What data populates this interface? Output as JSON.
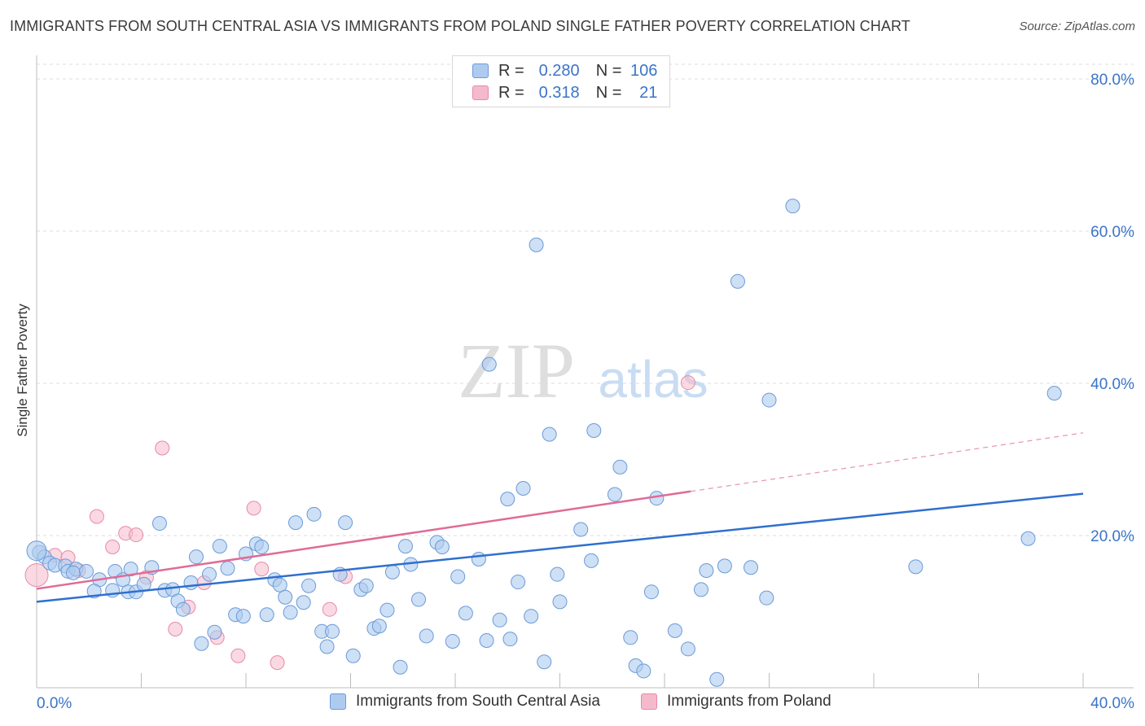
{
  "title": "IMMIGRANTS FROM SOUTH CENTRAL ASIA VS IMMIGRANTS FROM POLAND SINGLE FATHER POVERTY CORRELATION CHART",
  "source": "Source: ZipAtlas.com",
  "watermark": {
    "zip": "ZIP",
    "atlas": "atlas"
  },
  "legend": {
    "r_label": "R =",
    "n_label": "N =",
    "rows": [
      {
        "r": "0.280",
        "n": "106"
      },
      {
        "r": "0.318",
        "n": "21"
      }
    ]
  },
  "colors": {
    "blue_fill": "#aecbef",
    "blue_stroke": "#6a9ad9",
    "blue_line": "#2f6fcf",
    "pink_fill": "#f5b9cc",
    "pink_stroke": "#e68aa8",
    "pink_line": "#e06b96",
    "tick_text": "#3b74c9"
  },
  "chart_data": {
    "type": "scatter",
    "xlabel": "",
    "ylabel": "Single Father Poverty",
    "xlim": [
      0,
      40
    ],
    "ylim": [
      0,
      80
    ],
    "x_tick_labels": [
      "0.0%",
      "40.0%"
    ],
    "y_ticks": [
      20,
      40,
      60,
      80
    ],
    "y_tick_labels": [
      "20.0%",
      "40.0%",
      "60.0%",
      "80.0%"
    ],
    "grid": "horizontal dashed",
    "legend_position": "top-center",
    "series": [
      {
        "name": "Immigrants from South Central Asia",
        "color": "blue",
        "R": 0.28,
        "N": 106,
        "trend": {
          "x": [
            0,
            40
          ],
          "y": [
            11.3,
            25.5
          ]
        },
        "points": [
          [
            0.1,
            17.8
          ],
          [
            0.3,
            17.2
          ],
          [
            0.5,
            16.4
          ],
          [
            0.7,
            16.1
          ],
          [
            1.1,
            16.0
          ],
          [
            1.2,
            15.3
          ],
          [
            1.5,
            15.6
          ],
          [
            1.4,
            15.1
          ],
          [
            1.9,
            15.3
          ],
          [
            2.4,
            14.2
          ],
          [
            2.2,
            12.7
          ],
          [
            2.9,
            12.8
          ],
          [
            3.0,
            15.3
          ],
          [
            3.3,
            14.2
          ],
          [
            3.6,
            15.6
          ],
          [
            3.5,
            12.6
          ],
          [
            3.8,
            12.6
          ],
          [
            4.1,
            13.6
          ],
          [
            4.4,
            15.8
          ],
          [
            4.7,
            21.6
          ],
          [
            4.9,
            12.8
          ],
          [
            5.2,
            12.9
          ],
          [
            5.4,
            11.4
          ],
          [
            5.6,
            10.3
          ],
          [
            5.9,
            13.8
          ],
          [
            6.1,
            17.2
          ],
          [
            6.3,
            5.8
          ],
          [
            6.6,
            14.9
          ],
          [
            6.8,
            7.3
          ],
          [
            7.0,
            18.6
          ],
          [
            7.3,
            15.7
          ],
          [
            7.6,
            9.6
          ],
          [
            7.9,
            9.4
          ],
          [
            8.0,
            17.6
          ],
          [
            8.4,
            18.9
          ],
          [
            8.6,
            18.5
          ],
          [
            8.8,
            9.6
          ],
          [
            9.1,
            14.2
          ],
          [
            9.3,
            13.5
          ],
          [
            9.5,
            11.9
          ],
          [
            9.7,
            9.9
          ],
          [
            9.9,
            21.7
          ],
          [
            10.2,
            11.2
          ],
          [
            10.4,
            13.4
          ],
          [
            10.6,
            22.8
          ],
          [
            10.9,
            7.4
          ],
          [
            11.1,
            5.4
          ],
          [
            11.3,
            7.4
          ],
          [
            11.6,
            14.9
          ],
          [
            11.8,
            21.7
          ],
          [
            12.1,
            4.2
          ],
          [
            12.4,
            12.9
          ],
          [
            12.6,
            13.4
          ],
          [
            12.9,
            7.8
          ],
          [
            13.1,
            8.1
          ],
          [
            13.4,
            10.2
          ],
          [
            13.6,
            15.2
          ],
          [
            13.9,
            2.7
          ],
          [
            14.1,
            18.6
          ],
          [
            14.3,
            16.2
          ],
          [
            14.6,
            11.6
          ],
          [
            14.9,
            6.8
          ],
          [
            15.3,
            19.1
          ],
          [
            15.5,
            18.5
          ],
          [
            15.9,
            6.1
          ],
          [
            16.1,
            14.6
          ],
          [
            16.4,
            9.8
          ],
          [
            16.9,
            16.9
          ],
          [
            17.2,
            6.2
          ],
          [
            17.7,
            8.9
          ],
          [
            17.3,
            42.5
          ],
          [
            18.0,
            24.8
          ],
          [
            18.1,
            6.4
          ],
          [
            18.4,
            13.9
          ],
          [
            18.6,
            26.2
          ],
          [
            18.9,
            9.4
          ],
          [
            19.1,
            58.2
          ],
          [
            19.4,
            3.4
          ],
          [
            19.6,
            33.3
          ],
          [
            19.9,
            14.9
          ],
          [
            20.0,
            11.3
          ],
          [
            20.8,
            20.8
          ],
          [
            21.2,
            16.7
          ],
          [
            21.3,
            33.8
          ],
          [
            22.1,
            25.4
          ],
          [
            22.3,
            29.0
          ],
          [
            22.7,
            6.6
          ],
          [
            22.9,
            2.9
          ],
          [
            23.2,
            2.2
          ],
          [
            23.5,
            12.6
          ],
          [
            23.7,
            24.9
          ],
          [
            24.4,
            7.5
          ],
          [
            24.9,
            5.1
          ],
          [
            25.4,
            12.9
          ],
          [
            25.6,
            15.4
          ],
          [
            26.0,
            1.1
          ],
          [
            26.3,
            16.0
          ],
          [
            26.8,
            53.4
          ],
          [
            27.3,
            15.8
          ],
          [
            27.9,
            11.8
          ],
          [
            28.0,
            37.8
          ],
          [
            28.9,
            63.3
          ],
          [
            33.6,
            15.9
          ],
          [
            37.9,
            19.6
          ],
          [
            38.9,
            38.7
          ],
          [
            0.0,
            18.0
          ]
        ]
      },
      {
        "name": "Immigrants from Poland",
        "color": "pink",
        "R": 0.318,
        "N": 21,
        "trend": {
          "x": [
            0,
            25
          ],
          "y": [
            13.0,
            25.8
          ]
        },
        "trend_dashed": {
          "x": [
            25,
            40
          ],
          "y": [
            25.8,
            33.5
          ]
        },
        "points": [
          [
            0.0,
            14.8
          ],
          [
            0.7,
            17.4
          ],
          [
            1.2,
            17.1
          ],
          [
            1.6,
            15.4
          ],
          [
            2.3,
            22.5
          ],
          [
            2.9,
            18.5
          ],
          [
            3.4,
            20.3
          ],
          [
            3.8,
            20.1
          ],
          [
            4.2,
            14.5
          ],
          [
            4.8,
            31.5
          ],
          [
            5.3,
            7.7
          ],
          [
            5.8,
            10.6
          ],
          [
            6.4,
            13.8
          ],
          [
            6.9,
            6.6
          ],
          [
            7.7,
            4.2
          ],
          [
            8.3,
            23.6
          ],
          [
            8.6,
            15.6
          ],
          [
            9.2,
            3.3
          ],
          [
            11.2,
            10.3
          ],
          [
            11.8,
            14.6
          ],
          [
            24.9,
            40.1
          ]
        ]
      }
    ]
  },
  "bottom_legend": [
    {
      "label": "Immigrants from South Central Asia"
    },
    {
      "label": "Immigrants from Poland"
    }
  ]
}
